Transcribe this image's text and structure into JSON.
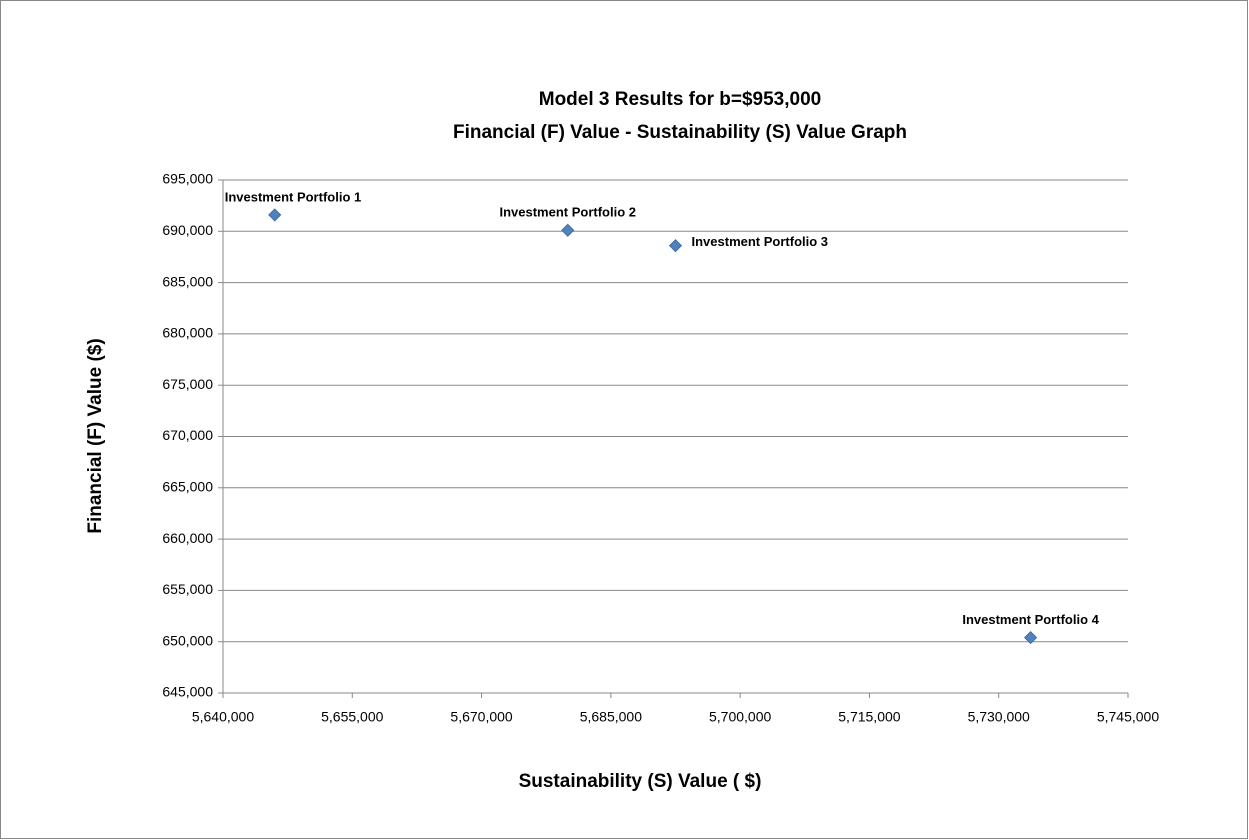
{
  "chart_data": {
    "type": "scatter",
    "title": [
      "Model 3 Results for b=$953,000",
      "Financial (F) Value - Sustainability (S) Value Graph"
    ],
    "xlabel": "Sustainability (S) Value ( $)",
    "ylabel": "Financial (F) Value ($)",
    "x": [
      5646000,
      5680000,
      5692500,
      5733700
    ],
    "values": [
      691600,
      690100,
      688600,
      650400
    ],
    "point_labels": [
      "Investment Portfolio 1",
      "Investment Portfolio 2",
      "Investment Portfolio 3",
      "Investment Portfolio 4"
    ],
    "color": "#4f81bd",
    "xlim": [
      5640000,
      5745000
    ],
    "xticks": [
      {
        "value": 5640000,
        "label": "5,640,000"
      },
      {
        "value": 5655000,
        "label": "5,655,000"
      },
      {
        "value": 5670000,
        "label": "5,670,000"
      },
      {
        "value": 5685000,
        "label": "5,685,000"
      },
      {
        "value": 5700000,
        "label": "5,700,000"
      },
      {
        "value": 5715000,
        "label": "5,715,000"
      },
      {
        "value": 5730000,
        "label": "5,730,000"
      },
      {
        "value": 5745000,
        "label": "5,745,000"
      }
    ],
    "ylim": [
      645000,
      695000
    ],
    "yticks": [
      {
        "value": 645000,
        "label": "645,000"
      },
      {
        "value": 650000,
        "label": "650,000"
      },
      {
        "value": 655000,
        "label": "655,000"
      },
      {
        "value": 660000,
        "label": "660,000"
      },
      {
        "value": 665000,
        "label": "665,000"
      },
      {
        "value": 670000,
        "label": "670,000"
      },
      {
        "value": 675000,
        "label": "675,000"
      },
      {
        "value": 680000,
        "label": "680,000"
      },
      {
        "value": 685000,
        "label": "685,000"
      },
      {
        "value": 690000,
        "label": "690,000"
      },
      {
        "value": 695000,
        "label": "695,000"
      }
    ],
    "grid": true
  }
}
